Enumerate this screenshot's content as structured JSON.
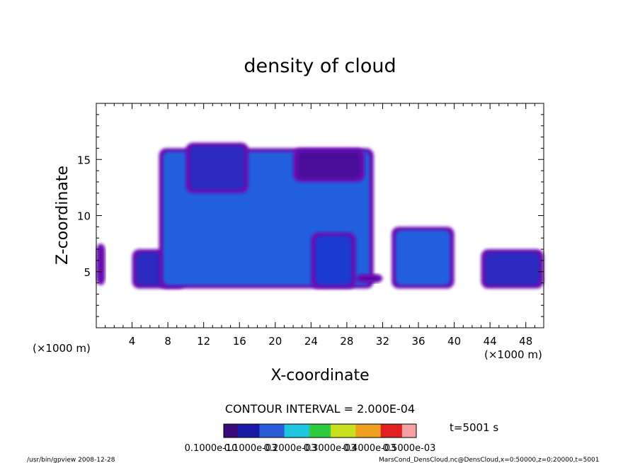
{
  "chart_data": {
    "type": "heatmap",
    "title": "density of cloud",
    "xlabel": "X-coordinate",
    "ylabel": "Z-coordinate",
    "x_unit": "(×1000 m)",
    "y_unit": "(×1000 m)",
    "xlim": [
      0,
      50
    ],
    "ylim": [
      0,
      20
    ],
    "xticks": [
      4,
      8,
      12,
      16,
      20,
      24,
      28,
      32,
      36,
      40,
      44,
      48
    ],
    "yticks": [
      5,
      10,
      15
    ],
    "contour_interval_label": "CONTOUR INTERVAL = 2.000E-04",
    "time_label": "t=5001 s",
    "colorbar": {
      "min": 0.0001,
      "max": 0.0006,
      "tick_labels": [
        "0.1000e-10",
        "0.1000e-03",
        "0.2000e-03",
        "0.3000e-03",
        "0.4000e-03",
        "0.5000e-03"
      ],
      "colors": [
        "#3a0a7a",
        "#1a1aa8",
        "#2a5bd8",
        "#1ec6e0",
        "#2ecc40",
        "#c8e020",
        "#f0a020",
        "#e02020",
        "#f4a0a0"
      ]
    },
    "cloud_regions": [
      {
        "x": [
          0,
          1
        ],
        "z": [
          3.8,
          7.5
        ],
        "level": "low"
      },
      {
        "x": [
          4,
          10
        ],
        "z": [
          3.5,
          7
        ],
        "level": "low-mid"
      },
      {
        "x": [
          7,
          31
        ],
        "z": [
          3.5,
          16
        ],
        "level": "mid-high"
      },
      {
        "x": [
          10,
          17
        ],
        "z": [
          12,
          16.5
        ],
        "level": "low-mid"
      },
      {
        "x": [
          22,
          30
        ],
        "z": [
          13,
          16
        ],
        "level": "low"
      },
      {
        "x": [
          24,
          29
        ],
        "z": [
          3.5,
          8.5
        ],
        "level": "mid"
      },
      {
        "x": [
          29,
          32
        ],
        "z": [
          4,
          4.8
        ],
        "level": "low"
      },
      {
        "x": [
          33,
          40
        ],
        "z": [
          3.5,
          9
        ],
        "level": "mid-high"
      },
      {
        "x": [
          43,
          50
        ],
        "z": [
          3.5,
          7
        ],
        "level": "low-mid"
      }
    ]
  },
  "footer": {
    "left": "/usr/bin/gpview   2008-12-28",
    "right": "MarsCond_DensCloud.nc@DensCloud,x=0:50000,z=0:20000,t=5001"
  }
}
